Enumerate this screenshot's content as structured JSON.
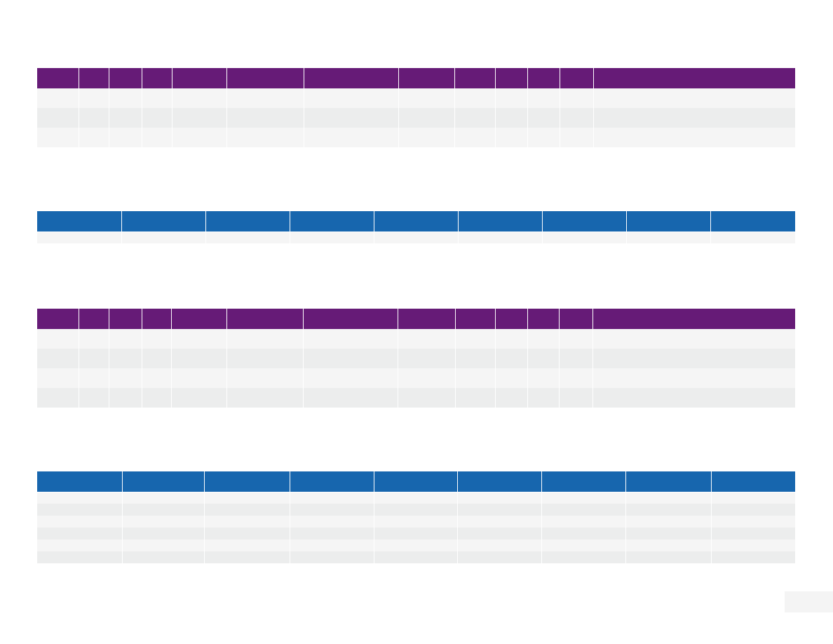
{
  "colors": {
    "purple_header": "#661b77",
    "blue_header": "#1766ae",
    "row_light": "#f5f5f5",
    "row_dark": "#eceded"
  },
  "tables": [
    {
      "id": "table-1",
      "theme": "purple",
      "row_count": 3,
      "columns": 13
    },
    {
      "id": "table-2",
      "theme": "blue",
      "row_count": 1,
      "columns": 9
    },
    {
      "id": "table-3",
      "theme": "purple",
      "row_count": 4,
      "columns": 13
    },
    {
      "id": "table-4",
      "theme": "blue",
      "row_count": 6,
      "columns": 9
    }
  ]
}
